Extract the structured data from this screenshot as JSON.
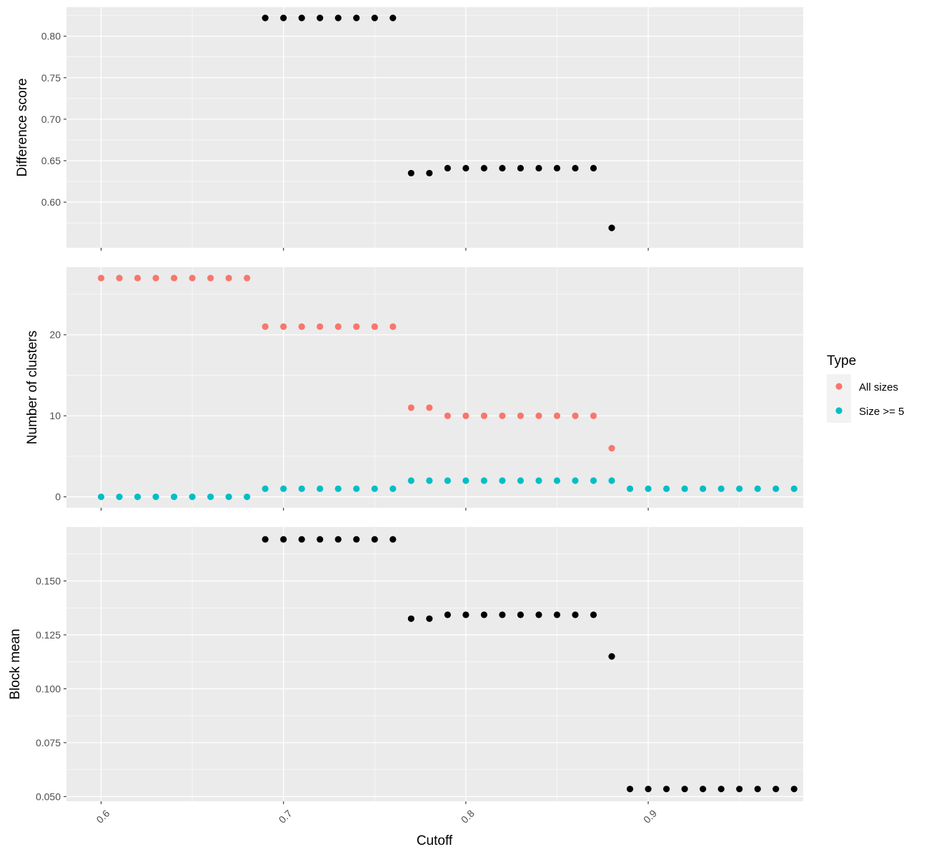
{
  "chart_data": {
    "type": "scatter",
    "xlabel": "Cutoff",
    "xlim": [
      0.581,
      0.985
    ],
    "xticks": [
      0.6,
      0.7,
      0.8,
      0.9
    ],
    "xtick_labels": [
      "0.6",
      "0.7",
      "0.8",
      "0.9"
    ],
    "facets": [
      {
        "id": "difference",
        "ylabel": "Difference score",
        "ylim": [
          0.545,
          0.835
        ],
        "yticks": [
          0.6,
          0.65,
          0.7,
          0.75,
          0.8
        ],
        "ytick_labels": [
          "0.60",
          "0.65",
          "0.70",
          "0.75",
          "0.80"
        ],
        "series": [
          {
            "color": "#000000",
            "x": [
              0.69,
              0.7,
              0.71,
              0.72,
              0.73,
              0.74,
              0.75,
              0.76,
              0.77,
              0.78,
              0.79,
              0.8,
              0.81,
              0.82,
              0.83,
              0.84,
              0.85,
              0.86,
              0.87,
              0.88
            ],
            "y": [
              0.822,
              0.822,
              0.822,
              0.822,
              0.822,
              0.822,
              0.822,
              0.822,
              0.635,
              0.635,
              0.641,
              0.641,
              0.641,
              0.641,
              0.641,
              0.641,
              0.641,
              0.641,
              0.641,
              0.569
            ]
          }
        ]
      },
      {
        "id": "clusters",
        "ylabel": "Number of clusters",
        "ylim": [
          -1.35,
          28.35
        ],
        "yticks": [
          0,
          10,
          20
        ],
        "ytick_labels": [
          "0",
          "10",
          "20"
        ],
        "series": [
          {
            "name": "All sizes",
            "color": "#F8766D",
            "x": [
              0.6,
              0.61,
              0.62,
              0.63,
              0.64,
              0.65,
              0.66,
              0.67,
              0.68,
              0.69,
              0.7,
              0.71,
              0.72,
              0.73,
              0.74,
              0.75,
              0.76,
              0.77,
              0.78,
              0.79,
              0.8,
              0.81,
              0.82,
              0.83,
              0.84,
              0.85,
              0.86,
              0.87,
              0.88
            ],
            "y": [
              27,
              27,
              27,
              27,
              27,
              27,
              27,
              27,
              27,
              21,
              21,
              21,
              21,
              21,
              21,
              21,
              21,
              11,
              11,
              10,
              10,
              10,
              10,
              10,
              10,
              10,
              10,
              10,
              6
            ]
          },
          {
            "name": "Size >= 5",
            "color": "#00BFC4",
            "x": [
              0.6,
              0.61,
              0.62,
              0.63,
              0.64,
              0.65,
              0.66,
              0.67,
              0.68,
              0.69,
              0.7,
              0.71,
              0.72,
              0.73,
              0.74,
              0.75,
              0.76,
              0.77,
              0.78,
              0.79,
              0.8,
              0.81,
              0.82,
              0.83,
              0.84,
              0.85,
              0.86,
              0.87,
              0.88,
              0.89,
              0.9,
              0.91,
              0.92,
              0.93,
              0.94,
              0.95,
              0.96,
              0.97,
              0.98
            ],
            "y": [
              0,
              0,
              0,
              0,
              0,
              0,
              0,
              0,
              0,
              1,
              1,
              1,
              1,
              1,
              1,
              1,
              1,
              2,
              2,
              2,
              2,
              2,
              2,
              2,
              2,
              2,
              2,
              2,
              2,
              1,
              1,
              1,
              1,
              1,
              1,
              1,
              1,
              1,
              1
            ]
          }
        ]
      },
      {
        "id": "blockmean",
        "ylabel": "Block mean",
        "ylim": [
          0.0478,
          0.175
        ],
        "yticks": [
          0.05,
          0.075,
          0.1,
          0.125,
          0.15
        ],
        "ytick_labels": [
          "0.050",
          "0.075",
          "0.100",
          "0.125",
          "0.150"
        ],
        "series": [
          {
            "color": "#000000",
            "x": [
              0.69,
              0.7,
              0.71,
              0.72,
              0.73,
              0.74,
              0.75,
              0.76,
              0.77,
              0.78,
              0.79,
              0.8,
              0.81,
              0.82,
              0.83,
              0.84,
              0.85,
              0.86,
              0.87,
              0.88,
              0.89,
              0.9,
              0.91,
              0.92,
              0.93,
              0.94,
              0.95,
              0.96,
              0.97,
              0.98
            ],
            "y": [
              0.1693,
              0.1693,
              0.1693,
              0.1693,
              0.1693,
              0.1693,
              0.1693,
              0.1693,
              0.1325,
              0.1325,
              0.1343,
              0.1343,
              0.1343,
              0.1343,
              0.1343,
              0.1343,
              0.1343,
              0.1343,
              0.1343,
              0.115,
              0.0535,
              0.0535,
              0.0535,
              0.0535,
              0.0535,
              0.0535,
              0.0535,
              0.0535,
              0.0535,
              0.0535
            ]
          }
        ]
      }
    ],
    "legend": {
      "title": "Type",
      "placement": "right",
      "items": [
        {
          "label": "All sizes",
          "color": "#F8766D"
        },
        {
          "label": "Size >= 5",
          "color": "#00BFC4"
        }
      ]
    },
    "grid": true,
    "panel_background": "#EBEBEB"
  }
}
